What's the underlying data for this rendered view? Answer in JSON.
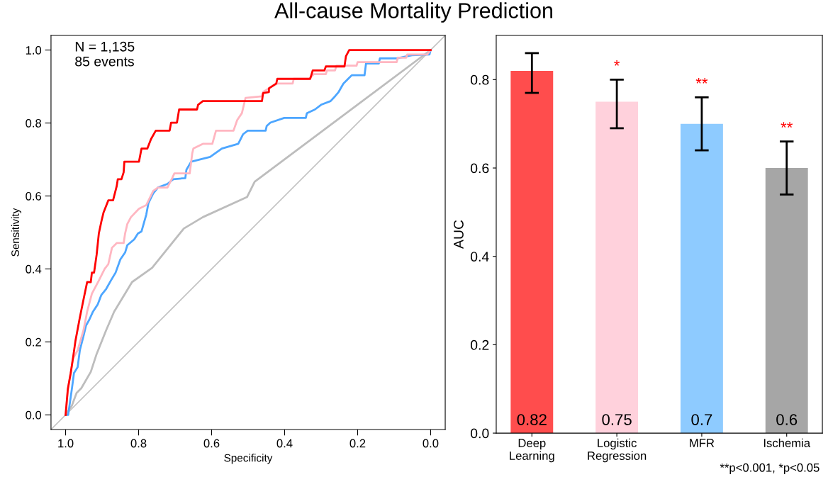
{
  "chart_data": [
    {
      "type": "line",
      "title": "All-cause Mortality Prediction",
      "xlabel": "Specificity",
      "ylabel": "Sensitivity",
      "annotations": [
        "N = 1,135",
        "85 events"
      ],
      "xlim": [
        1.04,
        -0.04
      ],
      "ylim": [
        -0.04,
        1.04
      ],
      "xticks": [
        {
          "value": 1,
          "label": "1.0"
        },
        {
          "value": 0.8,
          "label": "0.8"
        },
        {
          "value": 0.6,
          "label": "0.6"
        },
        {
          "value": 0.4,
          "label": "0.4"
        },
        {
          "value": 0.2,
          "label": "0.2"
        },
        {
          "value": 0,
          "label": "0.0"
        }
      ],
      "yticks": [
        {
          "value": 0,
          "label": "0.0"
        },
        {
          "value": 0.2,
          "label": "0.2"
        },
        {
          "value": 0.4,
          "label": "0.4"
        },
        {
          "value": 0.6,
          "label": "0.6"
        },
        {
          "value": 0.8,
          "label": "0.8"
        },
        {
          "value": 1,
          "label": "1.0"
        }
      ],
      "grid": false,
      "marker": "none",
      "series": [
        {
          "color": "#c4c4c4",
          "x": [
            1.04,
            -0.04
          ],
          "values": [
            -0.04,
            1.04
          ]
        },
        {
          "color": "#bdbdbd",
          "x": [
            1.0,
            0.983,
            0.97,
            0.957,
            0.931,
            0.915,
            0.889,
            0.867,
            0.818,
            0.763,
            0.676,
            0.624,
            0.503,
            0.482,
            0.0
          ],
          "values": [
            0.0,
            0.025,
            0.06,
            0.073,
            0.118,
            0.167,
            0.232,
            0.283,
            0.364,
            0.403,
            0.511,
            0.542,
            0.597,
            0.639,
            1.0
          ]
        },
        {
          "color": "#4da6ff",
          "x": [
            1.0,
            0.993,
            0.983,
            0.977,
            0.967,
            0.961,
            0.951,
            0.944,
            0.935,
            0.925,
            0.912,
            0.902,
            0.889,
            0.876,
            0.863,
            0.85,
            0.837,
            0.831,
            0.812,
            0.802,
            0.792,
            0.779,
            0.773,
            0.76,
            0.747,
            0.721,
            0.705,
            0.672,
            0.669,
            0.656,
            0.604,
            0.572,
            0.527,
            0.514,
            0.501,
            0.452,
            0.449,
            0.439,
            0.401,
            0.342,
            0.339,
            0.317,
            0.3,
            0.274,
            0.262,
            0.252,
            0.239,
            0.226,
            0.216,
            0.181,
            0.177,
            0.142,
            0.139,
            0.093,
            0.051,
            0.003,
            0.0
          ],
          "values": [
            0.0,
            0.0,
            0.07,
            0.115,
            0.131,
            0.177,
            0.216,
            0.245,
            0.261,
            0.283,
            0.303,
            0.329,
            0.345,
            0.368,
            0.39,
            0.426,
            0.445,
            0.465,
            0.481,
            0.497,
            0.503,
            0.549,
            0.581,
            0.607,
            0.623,
            0.633,
            0.646,
            0.649,
            0.672,
            0.694,
            0.707,
            0.73,
            0.743,
            0.769,
            0.779,
            0.779,
            0.792,
            0.801,
            0.814,
            0.814,
            0.827,
            0.837,
            0.85,
            0.86,
            0.873,
            0.885,
            0.908,
            0.921,
            0.931,
            0.931,
            0.963,
            0.963,
            0.977,
            0.977,
            0.986,
            0.988,
            1.0
          ]
        },
        {
          "color": "#ffb6c1",
          "x": [
            1.0,
            0.993,
            0.986,
            0.98,
            0.967,
            0.951,
            0.941,
            0.928,
            0.909,
            0.893,
            0.883,
            0.873,
            0.86,
            0.841,
            0.837,
            0.831,
            0.821,
            0.799,
            0.779,
            0.76,
            0.747,
            0.721,
            0.708,
            0.702,
            0.66,
            0.653,
            0.65,
            0.624,
            0.598,
            0.588,
            0.54,
            0.53,
            0.517,
            0.507,
            0.462,
            0.459,
            0.443,
            0.42,
            0.378,
            0.375,
            0.333,
            0.32,
            0.287,
            0.284,
            0.262,
            0.258,
            0.203,
            0.2,
            0.093,
            0.09,
            0.067,
            0.064,
            0.009,
            0.0
          ],
          "values": [
            0.0,
            0.076,
            0.115,
            0.154,
            0.177,
            0.232,
            0.283,
            0.332,
            0.368,
            0.4,
            0.413,
            0.458,
            0.471,
            0.471,
            0.497,
            0.523,
            0.542,
            0.565,
            0.575,
            0.614,
            0.623,
            0.623,
            0.649,
            0.662,
            0.662,
            0.717,
            0.73,
            0.743,
            0.743,
            0.779,
            0.779,
            0.808,
            0.827,
            0.869,
            0.873,
            0.885,
            0.895,
            0.908,
            0.908,
            0.921,
            0.921,
            0.934,
            0.934,
            0.944,
            0.944,
            0.957,
            0.957,
            0.967,
            0.967,
            0.979,
            0.979,
            0.988,
            0.988,
            1.0
          ]
        },
        {
          "color": "#ff0000",
          "x": [
            1.0,
            0.994,
            0.986,
            0.98,
            0.973,
            0.967,
            0.961,
            0.951,
            0.941,
            0.931,
            0.928,
            0.922,
            0.915,
            0.909,
            0.902,
            0.896,
            0.883,
            0.87,
            0.86,
            0.857,
            0.847,
            0.841,
            0.839,
            0.799,
            0.792,
            0.776,
            0.766,
            0.753,
            0.715,
            0.711,
            0.695,
            0.689,
            0.64,
            0.637,
            0.624,
            0.462,
            0.459,
            0.443,
            0.443,
            0.423,
            0.42,
            0.33,
            0.326,
            0.323,
            0.291,
            0.287,
            0.236,
            0.232,
            0.223,
            0.009,
            0.0
          ],
          "values": [
            0.0,
            0.07,
            0.115,
            0.154,
            0.203,
            0.235,
            0.267,
            0.316,
            0.364,
            0.364,
            0.39,
            0.39,
            0.439,
            0.497,
            0.53,
            0.555,
            0.588,
            0.588,
            0.627,
            0.646,
            0.646,
            0.665,
            0.694,
            0.694,
            0.73,
            0.73,
            0.756,
            0.779,
            0.779,
            0.801,
            0.801,
            0.837,
            0.837,
            0.85,
            0.86,
            0.86,
            0.882,
            0.885,
            0.895,
            0.908,
            0.921,
            0.921,
            0.934,
            0.944,
            0.944,
            0.955,
            0.955,
            0.983,
            1.0,
            1.0,
            1.0
          ]
        }
      ]
    },
    {
      "type": "bar",
      "ylabel": "AUC",
      "categories": [
        "Deep\nLearning",
        "Logistic\nRegression",
        "MFR",
        "Ischemia"
      ],
      "values": [
        0.82,
        0.75,
        0.7,
        0.6
      ],
      "colors": [
        "#ff4d4d",
        "#ffd1dc",
        "#8ecbff",
        "#a6a6a6"
      ],
      "errors": [
        [
          0.77,
          0.86
        ],
        [
          0.69,
          0.8
        ],
        [
          0.64,
          0.76
        ],
        [
          0.54,
          0.66
        ]
      ],
      "data_labels": true,
      "ylim": [
        0,
        0.9
      ],
      "yticks": [
        {
          "value": 0,
          "label": "0.0"
        },
        {
          "value": 0.2,
          "label": "0.2"
        },
        {
          "value": 0.4,
          "label": "0.4"
        },
        {
          "value": 0.6,
          "label": "0.6"
        },
        {
          "value": 0.8,
          "label": "0.8"
        }
      ],
      "grid": false,
      "annotations": [
        "*",
        "**",
        "**",
        "**p<0.001, *p<0.05"
      ]
    }
  ]
}
